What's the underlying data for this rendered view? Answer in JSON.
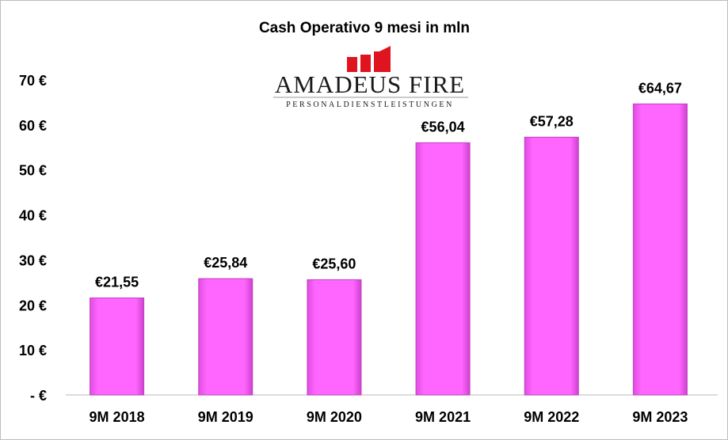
{
  "chart_data": {
    "type": "bar",
    "title": "Cash Operativo 9 mesi in mln",
    "categories": [
      "9M 2018",
      "9M 2019",
      "9M 2020",
      "9M 2021",
      "9M 2022",
      "9M 2023"
    ],
    "values": [
      21.55,
      25.84,
      25.6,
      56.04,
      57.28,
      64.67
    ],
    "data_labels": [
      "€21,55",
      "€25,84",
      "€25,60",
      "€56,04",
      "€57,28",
      "€64,67"
    ],
    "yticks": [
      0,
      10,
      20,
      30,
      40,
      50,
      60,
      70
    ],
    "ytick_labels": [
      "- €",
      "10 €",
      "20 €",
      "30 €",
      "40 €",
      "50 €",
      "60 €",
      "70 €"
    ],
    "ylim": [
      0,
      70
    ],
    "xlabel": "",
    "ylabel": "",
    "grid": false,
    "bar_color": "#ff66ff"
  },
  "logo": {
    "name": "Amadeus FiRe",
    "tagline": "PERSONALDIENSTLEISTUNGEN",
    "color": "#e0141e"
  }
}
